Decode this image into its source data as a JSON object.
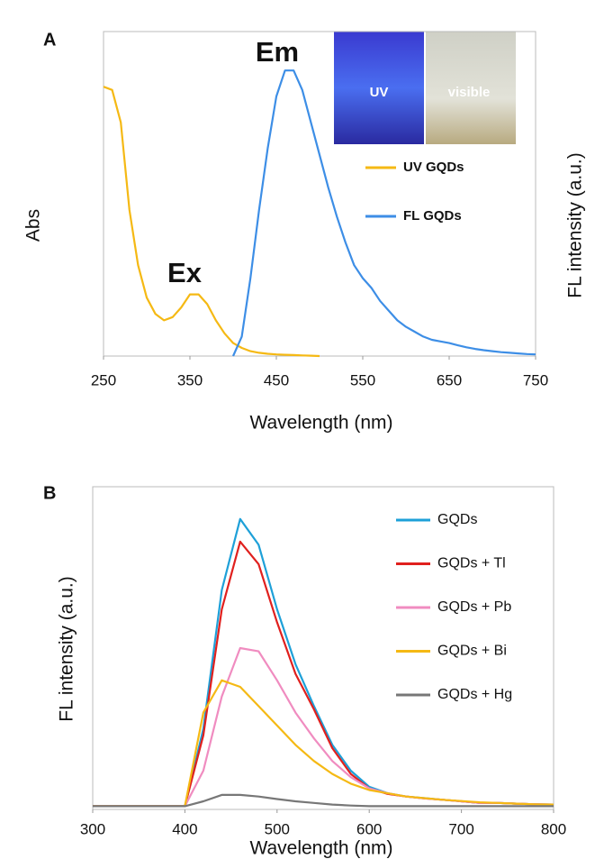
{
  "chart_data": [
    {
      "type": "line",
      "panel_label": "A",
      "xlabel": "Wavelength (nm)",
      "ylabel": "Abs",
      "y2label": "FL intensity (a.u.)",
      "annotations": [
        "Ex",
        "Em"
      ],
      "inset_labels": [
        "UV",
        "visible"
      ],
      "x": [
        250,
        260,
        270,
        280,
        290,
        300,
        310,
        320,
        330,
        340,
        350,
        360,
        370,
        380,
        390,
        400,
        410,
        420,
        430,
        440,
        450,
        460,
        470,
        480,
        490,
        500,
        510,
        520,
        530,
        540,
        550,
        560,
        570,
        580,
        590,
        600,
        610,
        620,
        630,
        640,
        650,
        660,
        670,
        680,
        690,
        700,
        710,
        720,
        730,
        740,
        750
      ],
      "xlim": [
        250,
        750
      ],
      "xticks": [
        250,
        350,
        450,
        550,
        650,
        750
      ],
      "ylim": [
        0,
        1
      ],
      "legend": "right",
      "series": [
        {
          "name": "UV GQDs",
          "color": "#f5b914",
          "values": [
            0.83,
            0.82,
            0.72,
            0.45,
            0.28,
            0.18,
            0.13,
            0.11,
            0.12,
            0.15,
            0.19,
            0.19,
            0.16,
            0.11,
            0.07,
            0.04,
            0.025,
            0.015,
            0.01,
            0.007,
            0.005,
            0.004,
            0.003,
            0.002,
            0.001,
            0.0,
            null,
            null,
            null,
            null,
            null,
            null,
            null,
            null,
            null,
            null,
            null,
            null,
            null,
            null,
            null,
            null,
            null,
            null,
            null,
            null,
            null,
            null,
            null,
            null,
            null
          ]
        },
        {
          "name": "FL GQDs",
          "color": "#3d8ee6",
          "values": [
            null,
            null,
            null,
            null,
            null,
            null,
            null,
            null,
            null,
            null,
            null,
            null,
            null,
            null,
            null,
            0.0,
            0.06,
            0.24,
            0.45,
            0.64,
            0.8,
            0.88,
            0.88,
            0.82,
            0.72,
            0.62,
            0.52,
            0.43,
            0.35,
            0.28,
            0.24,
            0.21,
            0.17,
            0.14,
            0.11,
            0.09,
            0.075,
            0.06,
            0.05,
            0.045,
            0.04,
            0.033,
            0.027,
            0.022,
            0.018,
            0.015,
            0.012,
            0.01,
            0.008,
            0.006,
            0.005
          ]
        }
      ]
    },
    {
      "type": "line",
      "panel_label": "B",
      "xlabel": "Wavelength (nm)",
      "ylabel": "FL intensity (a.u.)",
      "x": [
        300,
        320,
        340,
        360,
        380,
        400,
        420,
        440,
        460,
        480,
        500,
        520,
        540,
        560,
        580,
        600,
        620,
        640,
        660,
        680,
        700,
        720,
        740,
        760,
        780,
        800
      ],
      "xlim": [
        300,
        800
      ],
      "xticks": [
        300,
        400,
        500,
        600,
        700,
        800
      ],
      "ylim": [
        0,
        1
      ],
      "legend": "right",
      "series": [
        {
          "name": "GQDs",
          "color": "#1ea0d8",
          "values": [
            0.01,
            0.01,
            0.01,
            0.01,
            0.01,
            0.01,
            0.25,
            0.68,
            0.9,
            0.82,
            0.62,
            0.45,
            0.32,
            0.2,
            0.12,
            0.07,
            0.05,
            0.04,
            0.035,
            0.03,
            0.025,
            0.02,
            0.02,
            0.018,
            0.016,
            0.015
          ]
        },
        {
          "name": "GQDs + Tl",
          "color": "#e0201e",
          "values": [
            0.01,
            0.01,
            0.01,
            0.01,
            0.01,
            0.01,
            0.23,
            0.62,
            0.83,
            0.76,
            0.58,
            0.42,
            0.31,
            0.19,
            0.11,
            0.065,
            0.048,
            0.04,
            0.034,
            0.03,
            0.025,
            0.02,
            0.02,
            0.018,
            0.016,
            0.015
          ]
        },
        {
          "name": "GQDs + Pb",
          "color": "#f08cc0",
          "values": [
            0.01,
            0.01,
            0.01,
            0.01,
            0.01,
            0.01,
            0.12,
            0.35,
            0.5,
            0.49,
            0.4,
            0.3,
            0.22,
            0.15,
            0.1,
            0.065,
            0.05,
            0.04,
            0.034,
            0.03,
            0.025,
            0.02,
            0.02,
            0.018,
            0.016,
            0.015
          ]
        },
        {
          "name": "GQDs + Bi",
          "color": "#f5b914",
          "values": [
            0.01,
            0.01,
            0.01,
            0.01,
            0.01,
            0.01,
            0.3,
            0.4,
            0.38,
            0.32,
            0.26,
            0.2,
            0.15,
            0.11,
            0.08,
            0.06,
            0.05,
            0.04,
            0.035,
            0.03,
            0.026,
            0.022,
            0.02,
            0.018,
            0.016,
            0.015
          ]
        },
        {
          "name": "GQDs + Hg",
          "color": "#777777",
          "values": [
            0.01,
            0.01,
            0.01,
            0.01,
            0.01,
            0.01,
            0.025,
            0.045,
            0.045,
            0.04,
            0.032,
            0.025,
            0.02,
            0.015,
            0.012,
            0.01,
            0.01,
            0.01,
            0.01,
            0.01,
            0.01,
            0.01,
            0.01,
            0.01,
            0.01,
            0.01
          ]
        }
      ]
    }
  ]
}
